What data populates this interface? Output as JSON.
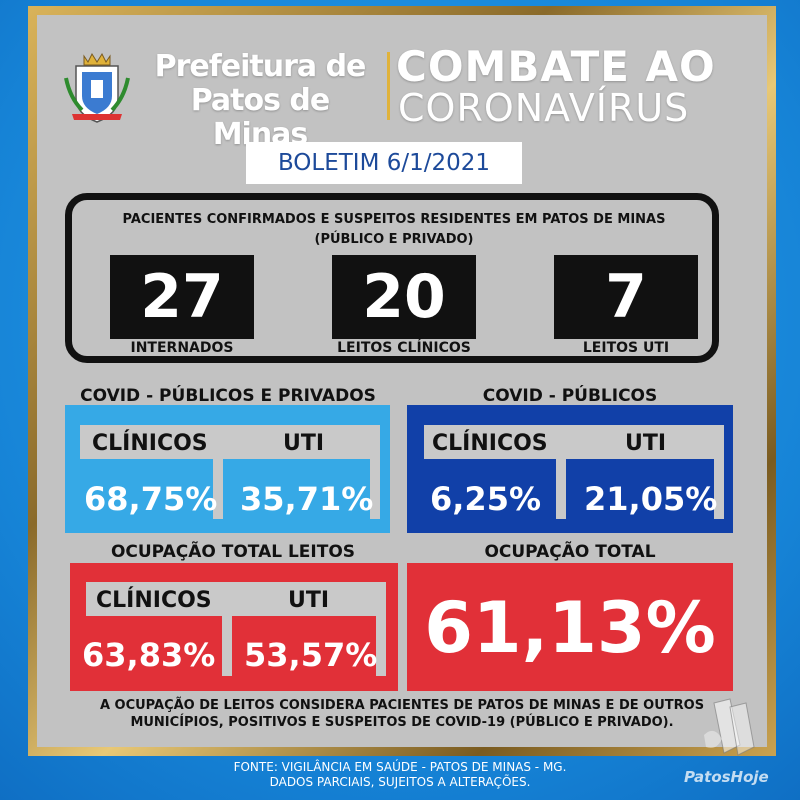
{
  "header": {
    "pref_line1": "Prefeitura de",
    "pref_line2": "Patos de Minas",
    "title_line1": "COMBATE AO",
    "title_line2": "CORONAVÍRUS"
  },
  "boletim": "BOLETIM 6/1/2021",
  "stats": {
    "title_line1": "PACIENTES CONFIRMADOS E SUSPEITOS RESIDENTES EM PATOS DE MINAS",
    "title_line2": "(PÚBLICO E PRIVADO)",
    "items": [
      {
        "value": "27",
        "label": "INTERNADOS"
      },
      {
        "value": "20",
        "label": "LEITOS CLÍNICOS"
      },
      {
        "value": "7",
        "label": "LEITOS UTI"
      }
    ]
  },
  "covid_all": {
    "title": "COVID - PÚBLICOS E PRIVADOS",
    "clinicos_label": "CLÍNICOS",
    "uti_label": "UTI",
    "clinicos_value": "68,75%",
    "uti_value": "35,71%"
  },
  "covid_public": {
    "title": "COVID - PÚBLICOS",
    "clinicos_label": "CLÍNICOS",
    "uti_label": "UTI",
    "clinicos_value": "6,25%",
    "uti_value": "21,05%"
  },
  "ocupacao_leitos": {
    "title": "OCUPAÇÃO TOTAL LEITOS",
    "clinicos_label": "CLÍNICOS",
    "uti_label": "UTI",
    "clinicos_value": "63,83%",
    "uti_value": "53,57%"
  },
  "ocupacao_total": {
    "title": "OCUPAÇÃO TOTAL",
    "value": "61,13%"
  },
  "footnote": {
    "line1": "A OCUPAÇÃO DE LEITOS CONSIDERA PACIENTES DE PATOS DE MINAS E DE OUTROS",
    "line2": "MUNICÍPIOS, POSITIVOS E SUSPEITOS DE COVID-19 (PÚBLICO E PRIVADO)."
  },
  "source": {
    "line1": "FONTE: VIGILÂNCIA EM SAÚDE - PATOS DE MINAS - MG.",
    "line2": "DADOS PARCIAIS, SUJEITOS A ALTERAÇÕES."
  },
  "watermark": "PatosHoje",
  "colors": {
    "light_blue": "#36a9e6",
    "dark_blue": "#1140a8",
    "red": "#e13038",
    "gold": "#e0b23a"
  }
}
